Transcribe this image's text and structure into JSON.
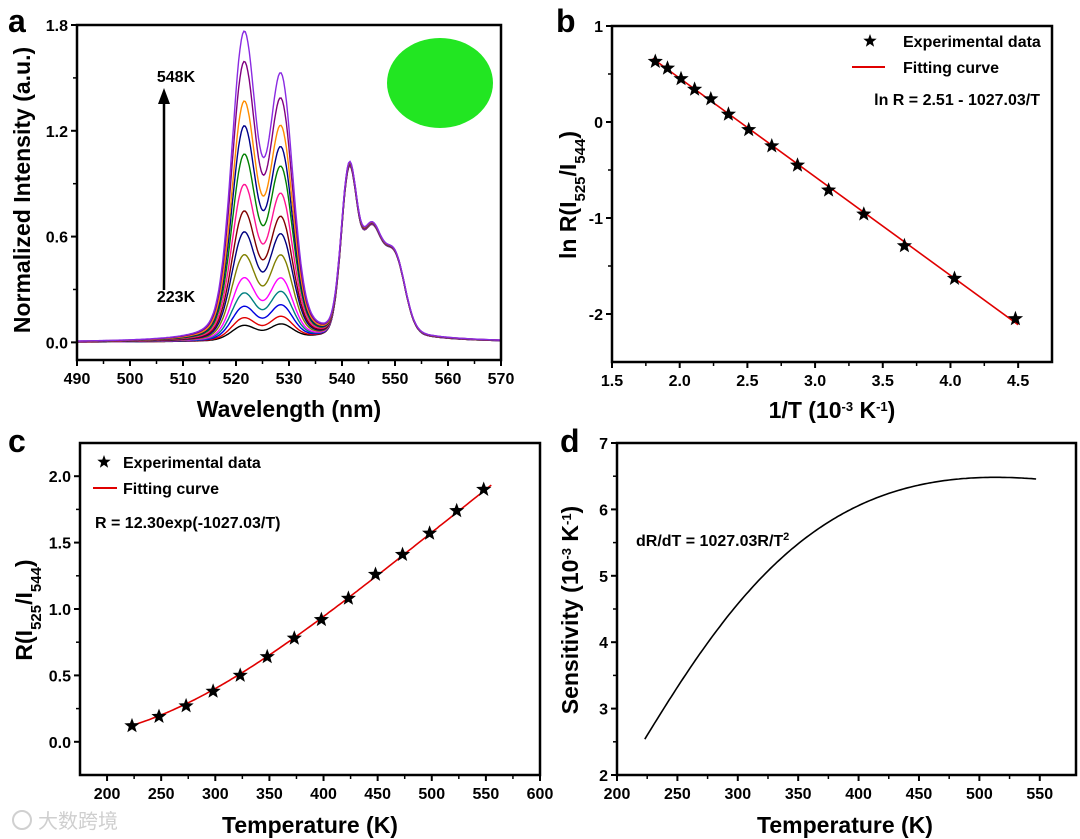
{
  "watermark": "大数跨境",
  "chart_data": [
    {
      "panel": "a",
      "type": "line",
      "xlabel": "Wavelength (nm)",
      "ylabel": "Normalized Intensity (a.u.)",
      "xlim": [
        490,
        570
      ],
      "ylim": [
        -0.1,
        1.8
      ],
      "xticks": [
        490,
        500,
        510,
        520,
        530,
        540,
        550,
        560,
        570
      ],
      "yticks": [
        0.0,
        0.6,
        1.2,
        1.8
      ],
      "ytick_labels": [
        "0.0",
        "0.6",
        "1.2",
        "1.8"
      ],
      "annotations": {
        "top": "548K",
        "bottom": "223K"
      },
      "inset": "green luminescence photo",
      "series": [
        {
          "temperature": 223,
          "color": "#000000",
          "peak_521": 0.08,
          "peak_528": 0.08
        },
        {
          "temperature": 248,
          "color": "#e00000",
          "peak_521": 0.12,
          "peak_528": 0.12
        },
        {
          "temperature": 273,
          "color": "#0000e0",
          "peak_521": 0.18,
          "peak_528": 0.18
        },
        {
          "temperature": 298,
          "color": "#008080",
          "peak_521": 0.25,
          "peak_528": 0.25
        },
        {
          "temperature": 323,
          "color": "#ff00ff",
          "peak_521": 0.33,
          "peak_528": 0.32
        },
        {
          "temperature": 348,
          "color": "#808000",
          "peak_521": 0.45,
          "peak_528": 0.44
        },
        {
          "temperature": 373,
          "color": "#000080",
          "peak_521": 0.57,
          "peak_528": 0.55
        },
        {
          "temperature": 398,
          "color": "#800000",
          "peak_521": 0.68,
          "peak_528": 0.64
        },
        {
          "temperature": 423,
          "color": "#ff1493",
          "peak_521": 0.82,
          "peak_528": 0.76
        },
        {
          "temperature": 448,
          "color": "#008000",
          "peak_521": 0.98,
          "peak_528": 0.9
        },
        {
          "temperature": 473,
          "color": "#00008b",
          "peak_521": 1.13,
          "peak_528": 1.0
        },
        {
          "temperature": 498,
          "color": "#ff8c00",
          "peak_521": 1.26,
          "peak_528": 1.11
        },
        {
          "temperature": 523,
          "color": "#800080",
          "peak_521": 1.47,
          "peak_528": 1.25
        },
        {
          "temperature": 548,
          "color": "#8a2be2",
          "peak_521": 1.63,
          "peak_528": 1.38
        }
      ]
    },
    {
      "panel": "b",
      "type": "scatter",
      "xlabel": {
        "pre": "1/T (10",
        "sup1": "-3",
        "mid": " K",
        "sup2": "-1",
        "post": ")"
      },
      "ylabel": {
        "pre": "ln R(I",
        "sub1": "525",
        "mid": "/I",
        "sub2": "544",
        "post": ")"
      },
      "xlim": [
        1.5,
        4.75
      ],
      "ylim": [
        -2.5,
        1
      ],
      "xticks": [
        1.5,
        2.0,
        2.5,
        3.0,
        3.5,
        4.0,
        4.5
      ],
      "xtick_labels": [
        "1.5",
        "2.0",
        "2.5",
        "3.0",
        "3.5",
        "4.0",
        "4.5"
      ],
      "yticks": [
        -2,
        -1,
        0,
        1
      ],
      "ytick_labels": [
        "-2",
        "-1",
        "0",
        "1"
      ],
      "legend": {
        "points": "Experimental data",
        "line": "Fitting curve",
        "position": "top-right"
      },
      "equation": "ln R = 2.51 - 1027.03/T",
      "fit": {
        "intercept": 2.51,
        "slope": -1027.03,
        "color": "#e00000"
      },
      "x": [
        1.82,
        1.91,
        2.01,
        2.11,
        2.23,
        2.36,
        2.51,
        2.68,
        2.87,
        3.1,
        3.36,
        3.66,
        4.03,
        4.48
      ],
      "y": [
        0.63,
        0.56,
        0.45,
        0.34,
        0.24,
        0.08,
        -0.08,
        -0.25,
        -0.45,
        -0.71,
        -0.96,
        -1.29,
        -1.63,
        -2.05
      ]
    },
    {
      "panel": "c",
      "type": "scatter",
      "xlabel": "Temperature (K)",
      "ylabel": {
        "pre": "R(I",
        "sub1": "525",
        "mid": "/I",
        "sub2": "544",
        "post": ")"
      },
      "xlim": [
        175,
        600
      ],
      "ylim": [
        -0.25,
        2.25
      ],
      "xticks": [
        200,
        250,
        300,
        350,
        400,
        450,
        500,
        550,
        600
      ],
      "yticks": [
        0.0,
        0.5,
        1.0,
        1.5,
        2.0
      ],
      "ytick_labels": [
        "0.0",
        "0.5",
        "1.0",
        "1.5",
        "2.0"
      ],
      "legend": {
        "points": "Experimental data",
        "line": "Fitting curve",
        "position": "top-left"
      },
      "equation": "R = 12.30exp(-1027.03/T)",
      "fit": {
        "A": 12.3,
        "B": 1027.03,
        "color": "#e00000",
        "range": [
          223,
          555
        ]
      },
      "x": [
        223,
        248,
        273,
        298,
        323,
        348,
        373,
        398,
        423,
        448,
        473,
        498,
        523,
        548
      ],
      "y": [
        0.12,
        0.19,
        0.27,
        0.38,
        0.5,
        0.64,
        0.78,
        0.92,
        1.08,
        1.26,
        1.41,
        1.57,
        1.74,
        1.9
      ]
    },
    {
      "panel": "d",
      "type": "line",
      "xlabel": "Temperature (K)",
      "ylabel": {
        "pre": "Sensitivity (10",
        "sup1": "-3",
        "mid": " K",
        "sup2": "-1",
        "post": ")"
      },
      "xlim": [
        200,
        580
      ],
      "ylim": [
        2,
        7
      ],
      "xticks": [
        200,
        250,
        300,
        350,
        400,
        450,
        500,
        550
      ],
      "yticks": [
        2,
        3,
        4,
        5,
        6,
        7
      ],
      "equation": {
        "pre": "dR/dT = 1027.03R/T",
        "sup": "2"
      },
      "curve": {
        "A": 12.3,
        "B": 1027.03,
        "range": [
          223,
          548
        ],
        "color": "#000000"
      },
      "y_samples": {
        "223": 2.54,
        "300": 4.5,
        "400": 6.1,
        "500": 6.48,
        "548": 6.47
      }
    }
  ]
}
